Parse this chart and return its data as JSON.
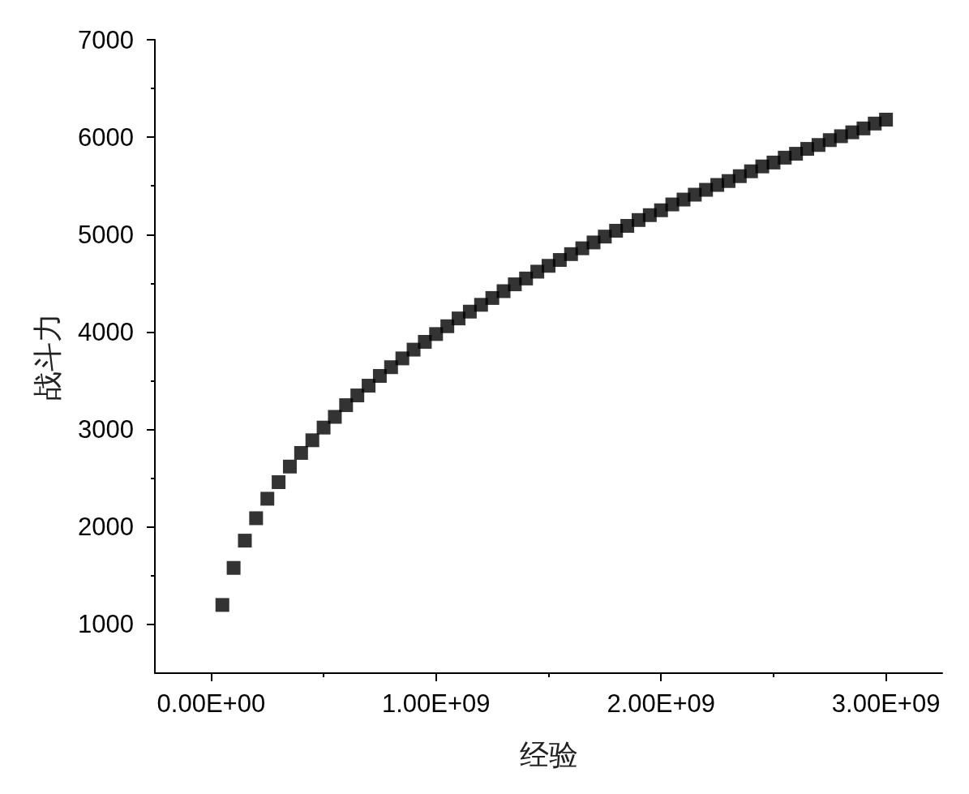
{
  "chart_data": {
    "type": "scatter",
    "xlabel": "经验",
    "ylabel": "战斗力",
    "color": "#000000",
    "marker": "square",
    "x": [
      50000000.0,
      100000000.0,
      150000000.0,
      200000000.0,
      250000000.0,
      300000000.0,
      350000000.0,
      400000000.0,
      450000000.0,
      500000000.0,
      550000000.0,
      600000000.0,
      650000000.0,
      700000000.0,
      750000000.0,
      800000000.0,
      850000000.0,
      900000000.0,
      950000000.0,
      1000000000.0,
      1050000000.0,
      1100000000.0,
      1150000000.0,
      1200000000.0,
      1250000000.0,
      1300000000.0,
      1350000000.0,
      1400000000.0,
      1450000000.0,
      1500000000.0,
      1550000000.0,
      1600000000.0,
      1650000000.0,
      1700000000.0,
      1750000000.0,
      1800000000.0,
      1850000000.0,
      1900000000.0,
      1950000000.0,
      2000000000.0,
      2050000000.0,
      2100000000.0,
      2150000000.0,
      2200000000.0,
      2250000000.0,
      2300000000.0,
      2350000000.0,
      2400000000.0,
      2450000000.0,
      2500000000.0,
      2550000000.0,
      2600000000.0,
      2650000000.0,
      2700000000.0,
      2750000000.0,
      2800000000.0,
      2850000000.0,
      2900000000.0,
      2950000000.0,
      3000000000.0
    ],
    "values": [
      1200,
      1580,
      1860,
      2090,
      2290,
      2460,
      2620,
      2760,
      2890,
      3020,
      3130,
      3250,
      3350,
      3450,
      3550,
      3640,
      3730,
      3820,
      3900,
      3980,
      4060,
      4140,
      4210,
      4280,
      4350,
      4420,
      4490,
      4550,
      4620,
      4680,
      4740,
      4800,
      4860,
      4920,
      4980,
      5040,
      5090,
      5150,
      5200,
      5250,
      5310,
      5360,
      5410,
      5460,
      5510,
      5550,
      5600,
      5650,
      5700,
      5740,
      5790,
      5830,
      5880,
      5920,
      5970,
      6010,
      6050,
      6090,
      6140,
      6180
    ],
    "xlim": [
      -250000000.0,
      3250000000.0
    ],
    "xticks": [
      {
        "value": 0,
        "label": "0.00E+00"
      },
      {
        "value": 500000000.0,
        "label": null
      },
      {
        "value": 1000000000.0,
        "label": "1.00E+09"
      },
      {
        "value": 1500000000.0,
        "label": null
      },
      {
        "value": 2000000000.0,
        "label": "2.00E+09"
      },
      {
        "value": 2500000000.0,
        "label": null
      },
      {
        "value": 3000000000.0,
        "label": "3.00E+09"
      }
    ],
    "ylim": [
      500,
      7000
    ],
    "yticks": [
      1000,
      {
        "value": 1500,
        "label": null
      },
      2000,
      {
        "value": 2500,
        "label": null
      },
      3000,
      {
        "value": 3500,
        "label": null
      },
      4000,
      {
        "value": 4500,
        "label": null
      },
      5000,
      {
        "value": 5500,
        "label": null
      },
      6000,
      {
        "value": 6500,
        "label": null
      },
      7000
    ]
  }
}
